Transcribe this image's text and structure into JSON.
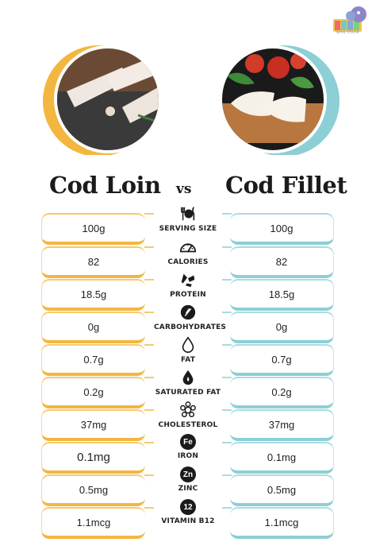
{
  "brand": {
    "logo_text": "who think"
  },
  "titles": {
    "left": "Cod Loin",
    "vs": "vs",
    "right": "Cod Fillet"
  },
  "rows": [
    {
      "label": "SERVING SIZE",
      "left": "100g",
      "right": "100g",
      "icon": "utensils-icon"
    },
    {
      "label": "CALORIES",
      "left": "82",
      "right": "82",
      "icon": "gauge-icon"
    },
    {
      "label": "PROTEIN",
      "left": "18.5g",
      "right": "18.5g",
      "icon": "protein-icon"
    },
    {
      "label": "CARBOHYDRATES",
      "left": "0g",
      "right": "0g",
      "icon": "wheat-icon"
    },
    {
      "label": "FAT",
      "left": "0.7g",
      "right": "0.7g",
      "icon": "drop-icon"
    },
    {
      "label": "SATURATED FAT",
      "left": "0.2g",
      "right": "0.2g",
      "icon": "drop-flame-icon"
    },
    {
      "label": "CHOLESTEROL",
      "left": "37mg",
      "right": "37mg",
      "icon": "molecule-icon"
    },
    {
      "label": "IRON",
      "left": "0.1mg",
      "right": "0.1mg",
      "icon": "fe-icon",
      "symbol": "Fe"
    },
    {
      "label": "ZINC",
      "left": "0.5mg",
      "right": "0.5mg",
      "icon": "zn-icon",
      "symbol": "Zn"
    },
    {
      "label": "VITAMIN B12",
      "left": "1.1mcg",
      "right": "1.1mcg",
      "icon": "b12-icon",
      "symbol": "12"
    }
  ],
  "colors": {
    "left_accent": "#f3b640",
    "right_accent": "#8ccfd4"
  }
}
